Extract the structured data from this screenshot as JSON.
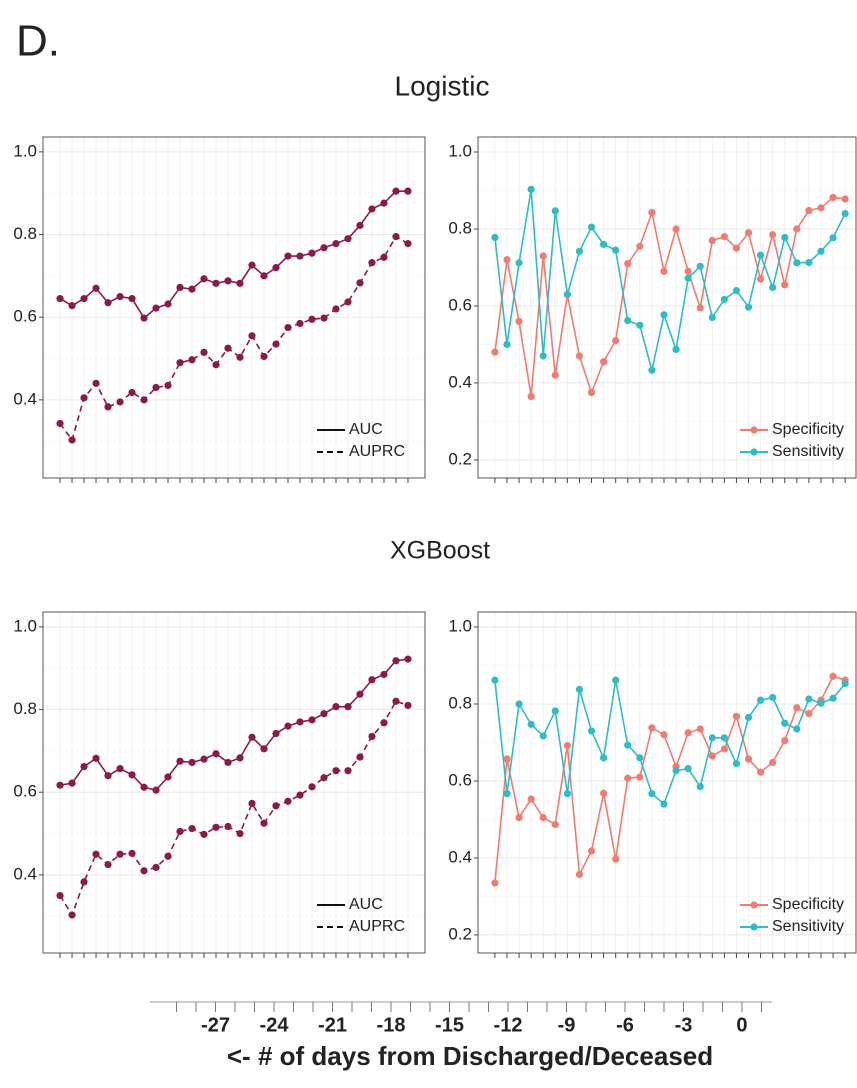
{
  "label": "D.",
  "titles": [
    "Logistic",
    "XGBoost"
  ],
  "chart_data": [
    {
      "type": "line",
      "legend": "bottom-right",
      "legend_points": false,
      "grid": true,
      "x": [
        -29,
        -28,
        -27,
        -26,
        -25,
        -24,
        -23,
        -22,
        -21,
        -20,
        -19,
        -18,
        -17,
        -16,
        -15,
        -14,
        -13,
        -12,
        -11,
        -10,
        -9,
        -8,
        -7,
        -6,
        -5,
        -4,
        -3,
        -2,
        -1,
        0
      ],
      "xlim": [
        -30.42,
        1.42
      ],
      "ylim": [
        0.211,
        1.036
      ],
      "yticks": [
        0.4,
        0.6,
        0.8,
        {
          "value": 1,
          "label": "1.0"
        }
      ],
      "minor_yticks": [
        0.3,
        0.5,
        0.7,
        0.9
      ],
      "series": [
        {
          "name": "AUC",
          "color": "#8b1a4b",
          "dash": "solid",
          "values": [
            0.645,
            0.628,
            0.645,
            0.67,
            0.635,
            0.65,
            0.645,
            0.598,
            0.622,
            0.632,
            0.672,
            0.668,
            0.693,
            0.682,
            0.688,
            0.682,
            0.726,
            0.7,
            0.72,
            0.748,
            0.748,
            0.755,
            0.768,
            0.778,
            0.79,
            0.822,
            0.862,
            0.876,
            0.905,
            0.905
          ]
        },
        {
          "name": "AUPRC",
          "color": "#8b1a4b",
          "dash": "dashed",
          "values": [
            0.343,
            0.303,
            0.405,
            0.44,
            0.383,
            0.395,
            0.418,
            0.4,
            0.43,
            0.435,
            0.49,
            0.497,
            0.515,
            0.485,
            0.525,
            0.503,
            0.555,
            0.505,
            0.535,
            0.575,
            0.585,
            0.595,
            0.598,
            0.62,
            0.637,
            0.683,
            0.732,
            0.745,
            0.795,
            0.778
          ]
        }
      ]
    },
    {
      "type": "line",
      "legend": "bottom-right",
      "legend_points": true,
      "grid": true,
      "x": [
        -29,
        -28,
        -27,
        -26,
        -25,
        -24,
        -23,
        -22,
        -21,
        -20,
        -19,
        -18,
        -17,
        -16,
        -15,
        -14,
        -13,
        -12,
        -11,
        -10,
        -9,
        -8,
        -7,
        -6,
        -5,
        -4,
        -3,
        -2,
        -1,
        0
      ],
      "xlim": [
        -30.4,
        0.9
      ],
      "ylim": [
        0.153,
        1.039
      ],
      "yticks": [
        0.2,
        0.4,
        0.6,
        0.8,
        {
          "value": 1,
          "label": "1.0"
        }
      ],
      "minor_yticks": [
        0.3,
        0.5,
        0.7,
        0.9
      ],
      "series": [
        {
          "name": "Specificity",
          "color": "#f07b70",
          "dash": "solid",
          "values": [
            0.48,
            0.72,
            0.56,
            0.365,
            0.73,
            0.42,
            0.63,
            0.47,
            0.375,
            0.455,
            0.51,
            0.71,
            0.755,
            0.843,
            0.69,
            0.8,
            0.69,
            0.595,
            0.77,
            0.78,
            0.75,
            0.79,
            0.67,
            0.785,
            0.655,
            0.8,
            0.848,
            0.855,
            0.882,
            0.878
          ]
        },
        {
          "name": "Sensitivity",
          "color": "#2fbcc4",
          "dash": "solid",
          "values": [
            0.778,
            0.5,
            0.712,
            0.903,
            0.47,
            0.847,
            0.63,
            0.742,
            0.805,
            0.76,
            0.745,
            0.562,
            0.55,
            0.433,
            0.577,
            0.487,
            0.672,
            0.703,
            0.57,
            0.617,
            0.64,
            0.597,
            0.732,
            0.648,
            0.778,
            0.712,
            0.713,
            0.742,
            0.777,
            0.84
          ]
        }
      ]
    },
    {
      "type": "line",
      "legend": "bottom-right",
      "legend_points": false,
      "grid": true,
      "x": [
        -29,
        -28,
        -27,
        -26,
        -25,
        -24,
        -23,
        -22,
        -21,
        -20,
        -19,
        -18,
        -17,
        -16,
        -15,
        -14,
        -13,
        -12,
        -11,
        -10,
        -9,
        -8,
        -7,
        -6,
        -5,
        -4,
        -3,
        -2,
        -1,
        0
      ],
      "xlim": [
        -30.42,
        1.42
      ],
      "ylim": [
        0.211,
        1.036
      ],
      "yticks": [
        0.4,
        0.6,
        0.8,
        {
          "value": 1,
          "label": "1.0"
        }
      ],
      "minor_yticks": [
        0.3,
        0.5,
        0.7,
        0.9
      ],
      "series": [
        {
          "name": "AUC",
          "color": "#8b1a4b",
          "dash": "solid",
          "values": [
            0.617,
            0.622,
            0.662,
            0.682,
            0.64,
            0.657,
            0.642,
            0.612,
            0.605,
            0.637,
            0.675,
            0.672,
            0.68,
            0.693,
            0.672,
            0.683,
            0.733,
            0.705,
            0.742,
            0.76,
            0.77,
            0.775,
            0.79,
            0.807,
            0.807,
            0.837,
            0.872,
            0.885,
            0.918,
            0.922
          ]
        },
        {
          "name": "AUPRC",
          "color": "#8b1a4b",
          "dash": "dashed",
          "values": [
            0.35,
            0.303,
            0.383,
            0.45,
            0.425,
            0.45,
            0.452,
            0.41,
            0.418,
            0.445,
            0.505,
            0.512,
            0.498,
            0.515,
            0.517,
            0.5,
            0.573,
            0.525,
            0.567,
            0.578,
            0.593,
            0.613,
            0.635,
            0.652,
            0.652,
            0.685,
            0.735,
            0.768,
            0.82,
            0.81
          ]
        }
      ]
    },
    {
      "type": "line",
      "legend": "bottom-right",
      "legend_points": true,
      "grid": true,
      "x": [
        -29,
        -28,
        -27,
        -26,
        -25,
        -24,
        -23,
        -22,
        -21,
        -20,
        -19,
        -18,
        -17,
        -16,
        -15,
        -14,
        -13,
        -12,
        -11,
        -10,
        -9,
        -8,
        -7,
        -6,
        -5,
        -4,
        -3,
        -2,
        -1,
        0
      ],
      "xlim": [
        -30.4,
        0.9
      ],
      "ylim": [
        0.153,
        1.039
      ],
      "yticks": [
        0.2,
        0.4,
        0.6,
        0.8,
        {
          "value": 1,
          "label": "1.0"
        }
      ],
      "minor_yticks": [
        0.3,
        0.5,
        0.7,
        0.9
      ],
      "series": [
        {
          "name": "Specificity",
          "color": "#f07b70",
          "dash": "solid",
          "values": [
            0.335,
            0.657,
            0.505,
            0.553,
            0.505,
            0.487,
            0.692,
            0.357,
            0.418,
            0.568,
            0.397,
            0.607,
            0.61,
            0.738,
            0.72,
            0.637,
            0.725,
            0.735,
            0.665,
            0.683,
            0.768,
            0.657,
            0.623,
            0.648,
            0.705,
            0.79,
            0.775,
            0.81,
            0.872,
            0.862
          ]
        },
        {
          "name": "Sensitivity",
          "color": "#2fbcc4",
          "dash": "solid",
          "values": [
            0.862,
            0.567,
            0.8,
            0.747,
            0.717,
            0.782,
            0.567,
            0.838,
            0.73,
            0.66,
            0.862,
            0.693,
            0.66,
            0.567,
            0.54,
            0.627,
            0.632,
            0.585,
            0.712,
            0.712,
            0.645,
            0.765,
            0.81,
            0.817,
            0.75,
            0.735,
            0.813,
            0.802,
            0.815,
            0.853
          ]
        }
      ]
    },
    {
      "type": "axis",
      "xlabel": "<- # of days from Discharged/Deceased",
      "xlim": [
        -30.36,
        1.54
      ],
      "xticks": [
        -27,
        -24,
        -21,
        -18,
        -15,
        -12,
        -9,
        -6,
        -3,
        0
      ],
      "minor_xticks": [
        -29,
        -28,
        -26,
        -25,
        -23,
        -22,
        -20,
        -19,
        -17,
        -16,
        -14,
        -13,
        -11,
        -10,
        -8,
        -7,
        -5,
        -4,
        -2,
        -1,
        1
      ]
    }
  ]
}
